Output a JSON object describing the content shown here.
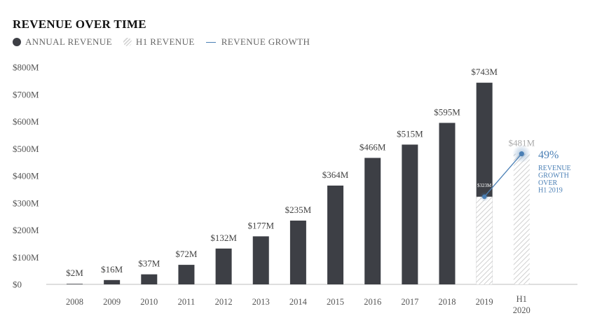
{
  "title": "REVENUE OVER TIME",
  "legend": {
    "annual": "ANNUAL REVENUE",
    "h1": "H1 REVENUE",
    "growth": "REVENUE GROWTH"
  },
  "colors": {
    "annual": "#3d3f45",
    "h1_hatch": "#d4d4d4",
    "growth": "#4a7fb5",
    "axis_text": "#555555",
    "h1_label": "#aaaaaa"
  },
  "chart_data": {
    "type": "bar",
    "categories": [
      "2008",
      "2009",
      "2010",
      "2011",
      "2012",
      "2013",
      "2014",
      "2015",
      "2016",
      "2017",
      "2018",
      "2019",
      "H1 2020"
    ],
    "series": [
      {
        "name": "ANNUAL REVENUE",
        "values": [
          2,
          16,
          37,
          72,
          132,
          177,
          235,
          364,
          466,
          515,
          595,
          743,
          null
        ]
      },
      {
        "name": "H1 REVENUE",
        "values": [
          null,
          null,
          null,
          null,
          null,
          null,
          null,
          null,
          null,
          null,
          null,
          323,
          481
        ]
      }
    ],
    "data_labels": [
      "$2M",
      "$16M",
      "$37M",
      "$72M",
      "$132M",
      "$177M",
      "$235M",
      "$364M",
      "$466M",
      "$515M",
      "$595M",
      "$743M",
      "$481M"
    ],
    "h1_2019_label": "$323M",
    "growth": {
      "name": "REVENUE GROWTH",
      "from": {
        "category": "2019",
        "value": 323
      },
      "to": {
        "category": "H1 2020",
        "value": 481
      },
      "percent_label": "49%",
      "annotation_lines": [
        "REVENUE",
        "GROWTH",
        "OVER",
        "H1 2019"
      ]
    },
    "y_ticks": [
      0,
      100,
      200,
      300,
      400,
      500,
      600,
      700,
      800
    ],
    "y_tick_labels": [
      "$0",
      "$100M",
      "$200M",
      "$300M",
      "$400M",
      "$500M",
      "$600M",
      "$700M",
      "$800M"
    ],
    "ylim": [
      0,
      800
    ],
    "grid": false,
    "legend_position": "top-left"
  }
}
